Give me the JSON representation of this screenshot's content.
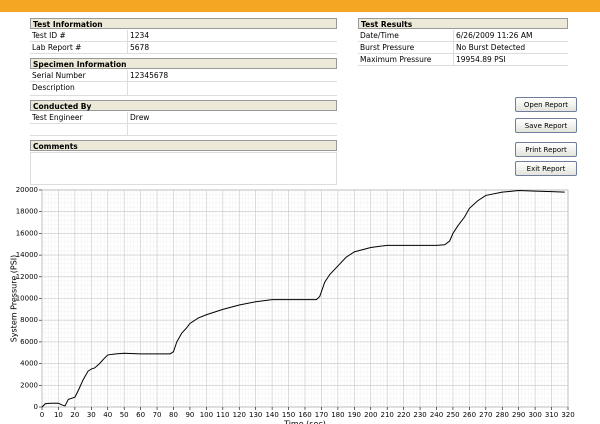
{
  "left_panel": {
    "sections": [
      {
        "title": "Test Information",
        "rows": [
          [
            "Test ID #",
            "1234"
          ],
          [
            "Lab Report #",
            "5678"
          ]
        ]
      },
      {
        "title": "Specimen Information",
        "rows": [
          [
            "Serial Number",
            "12345678"
          ],
          [
            "Description"
          ]
        ]
      },
      {
        "title": "Conducted By",
        "rows": [
          [
            "Test Engineer",
            "Drew"
          ],
          []
        ]
      },
      {
        "title": "Comments",
        "rows": []
      }
    ]
  },
  "right_panel": {
    "sections": [
      {
        "title": "Test Results",
        "rows": [
          [
            "Date/Time",
            "6/26/2009 11:26 AM"
          ],
          [
            "Burst Pressure",
            "No Burst Detected"
          ],
          [
            "Maximum Pressure",
            "19954.89 PSI"
          ]
        ]
      }
    ]
  },
  "buttons": [
    "Open Report",
    "Save Report",
    "Print Report",
    "Exit Report"
  ],
  "chart_data": {
    "type": "line",
    "y_label": "System Pressure  (PSI)",
    "x_label": "Time (sec)",
    "color": "#000000",
    "grid": true,
    "x": [
      0,
      2,
      5,
      10,
      12,
      14,
      16,
      20,
      22,
      25,
      28,
      30,
      32,
      35,
      38,
      40,
      45,
      50,
      60,
      70,
      78,
      80,
      82,
      85,
      88,
      90,
      95,
      100,
      110,
      120,
      130,
      140,
      150,
      160,
      167,
      169,
      172,
      175,
      180,
      185,
      190,
      200,
      210,
      220,
      230,
      240,
      245,
      248,
      250,
      253,
      257,
      260,
      265,
      270,
      280,
      290,
      300,
      310,
      318
    ],
    "values": [
      0,
      300,
      350,
      350,
      200,
      100,
      700,
      900,
      1500,
      2500,
      3300,
      3500,
      3600,
      4000,
      4500,
      4800,
      4900,
      4950,
      4900,
      4900,
      4900,
      5100,
      6000,
      6800,
      7300,
      7700,
      8200,
      8500,
      9000,
      9400,
      9700,
      9900,
      9900,
      9900,
      9900,
      10200,
      11500,
      12200,
      13000,
      13800,
      14300,
      14700,
      14900,
      14900,
      14900,
      14900,
      14950,
      15300,
      16000,
      16700,
      17500,
      18300,
      19000,
      19500,
      19800,
      19950,
      19900,
      19850,
      19800
    ],
    "xlim": [
      0,
      320
    ],
    "xticks": [
      0,
      10,
      20,
      30,
      40,
      50,
      60,
      70,
      80,
      90,
      100,
      110,
      120,
      130,
      140,
      150,
      160,
      170,
      180,
      190,
      200,
      210,
      220,
      230,
      240,
      250,
      260,
      270,
      280,
      290,
      300,
      310,
      320
    ],
    "ylim": [
      0,
      20000
    ],
    "yticks": [
      0,
      2000,
      4000,
      6000,
      8000,
      10000,
      12000,
      14000,
      16000,
      18000,
      20000
    ]
  }
}
